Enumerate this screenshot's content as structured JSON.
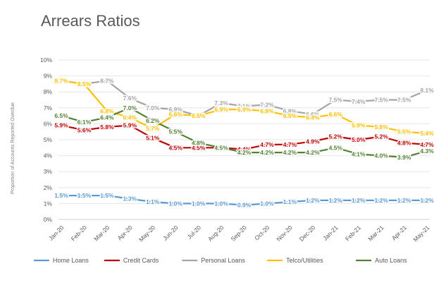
{
  "page": {
    "title": "Arrears Ratios"
  },
  "chart_data": {
    "type": "line",
    "title": "Arrears Ratios",
    "xlabel": "",
    "ylabel": "Proportion of Accounts Reported Overdue",
    "ylim": [
      0,
      10
    ],
    "y_ticks": [
      "0%",
      "1%",
      "2%",
      "3%",
      "4%",
      "5%",
      "6%",
      "7%",
      "8%",
      "9%",
      "10%"
    ],
    "categories": [
      "Jan-20",
      "Feb-20",
      "Mar-20",
      "Apr-20",
      "May-20",
      "Jun-20",
      "Jul-20",
      "Aug-20",
      "Sep-20",
      "Oct-20",
      "Nov-20",
      "Dec-20",
      "Jan-21",
      "Feb-21",
      "Mar-21",
      "Apr-21",
      "May-21"
    ],
    "legend_position": "bottom",
    "grid": "horizontal",
    "series": [
      {
        "name": "Home Loans",
        "color": "#5b9bd5",
        "values": [
          1.5,
          1.5,
          1.5,
          1.3,
          1.1,
          1.0,
          1.0,
          1.0,
          0.9,
          1.0,
          1.1,
          1.2,
          1.2,
          1.2,
          1.2,
          1.2,
          1.2
        ],
        "labels": [
          "1.5%",
          "1.5%",
          "1.5%",
          "1.3%",
          "1.1%",
          "1.0%",
          "1.0%",
          "1.0%",
          "0.9%",
          "1.0%",
          "1.1%",
          "1.2%",
          "1.2%",
          "1.2%",
          "1.2%",
          "1.2%",
          "1.2%"
        ]
      },
      {
        "name": "Credit Cards",
        "color": "#c00000",
        "values": [
          5.9,
          5.6,
          5.8,
          5.9,
          5.1,
          4.5,
          4.5,
          4.5,
          4.4,
          4.7,
          4.7,
          4.9,
          5.2,
          5.0,
          5.2,
          4.8,
          4.7
        ],
        "labels": [
          "5.9%",
          "5.6%",
          "5.8%",
          "5.9%",
          "5.1%",
          "4.5%",
          "4.5%",
          "4.5%",
          "4.4%",
          "4.7%",
          "4.7%",
          "4.9%",
          "5.2%",
          "5.0%",
          "5.2%",
          "4.8%",
          "4.7%"
        ]
      },
      {
        "name": "Personal Loans",
        "color": "#a5a5a5",
        "values": [
          8.7,
          8.5,
          8.7,
          7.6,
          7.0,
          6.9,
          6.5,
          7.3,
          7.1,
          7.2,
          6.8,
          6.6,
          7.5,
          7.4,
          7.5,
          7.5,
          8.1
        ],
        "labels": [
          "8.7%",
          "8.5%",
          "8.7%",
          "7.6%",
          "7.0%",
          "6.9%",
          "6.5%",
          "7.3%",
          "7.1%",
          "7.2%",
          "6.8%",
          "6.6%",
          "7.5%",
          "7.4%",
          "7.5%",
          "7.5%",
          "8.1%"
        ]
      },
      {
        "name": "Telco/Utilities",
        "color": "#ffc000",
        "values": [
          8.7,
          8.5,
          6.8,
          6.4,
          5.7,
          6.6,
          6.5,
          6.9,
          6.9,
          6.8,
          6.5,
          6.4,
          6.6,
          5.9,
          5.8,
          5.5,
          5.4
        ],
        "labels": [
          "8.7%",
          "8.5%",
          "6.8%",
          "6.4%",
          "5.7%",
          "6.6%",
          "6.5%",
          "6.9%",
          "6.9%",
          "6.8%",
          "6.5%",
          "6.4%",
          "6.6%",
          "5.9%",
          "5.8%",
          "5.5%",
          "5.4%"
        ]
      },
      {
        "name": "Auto Loans",
        "color": "#548235",
        "values": [
          6.5,
          6.1,
          6.4,
          7.0,
          6.2,
          5.5,
          4.8,
          4.5,
          4.2,
          4.2,
          4.2,
          4.2,
          4.5,
          4.1,
          4.0,
          3.9,
          4.3
        ],
        "labels": [
          "6.5%",
          "6.1%",
          "6.4%",
          "7.0%",
          "6.2%",
          "5.5%",
          "4.8%",
          "4.5%",
          "4.2%",
          "4.2%",
          "4.2%",
          "4.2%",
          "4.5%",
          "4.1%",
          "4.0%",
          "3.9%",
          "4.3%"
        ]
      }
    ]
  }
}
